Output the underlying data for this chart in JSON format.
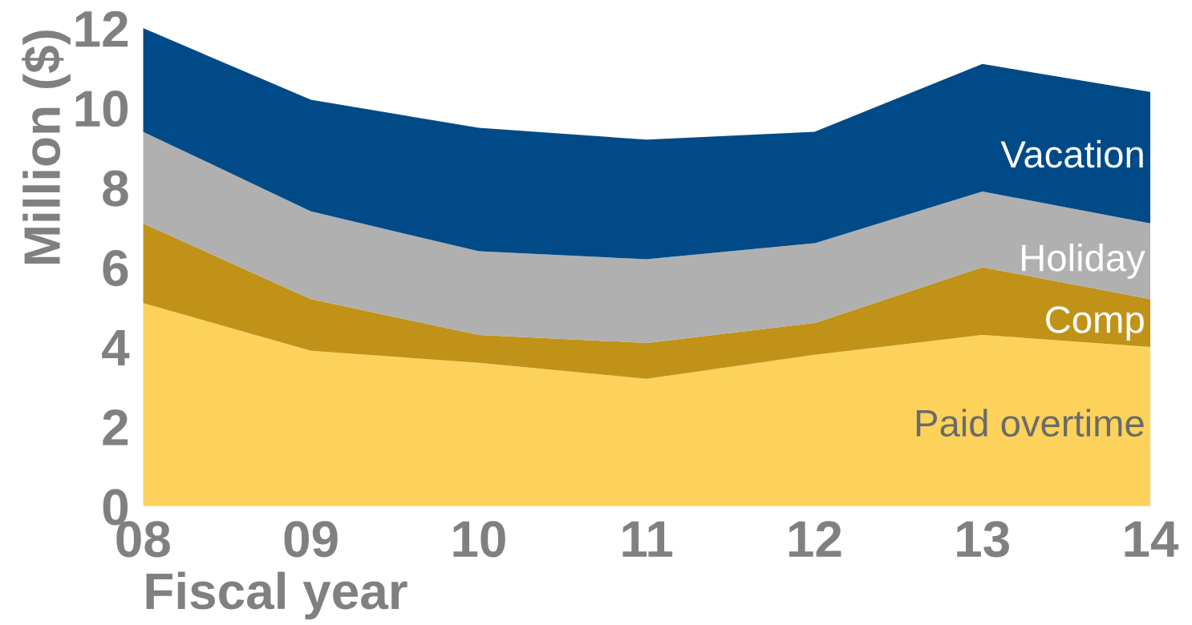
{
  "chart_data": {
    "type": "area",
    "stacked": true,
    "xlabel": "Fiscal year",
    "ylabel": "Million ($)",
    "categories": [
      "08",
      "09",
      "10",
      "11",
      "12",
      "13",
      "14"
    ],
    "series": [
      {
        "name": "Paid overtime",
        "color": "#fcd25a",
        "values": [
          5.1,
          3.9,
          3.6,
          3.2,
          3.8,
          4.3,
          4.0
        ]
      },
      {
        "name": "Comp",
        "color": "#c09218",
        "values": [
          2.0,
          1.3,
          0.7,
          0.9,
          0.8,
          1.7,
          1.2
        ]
      },
      {
        "name": "Holiday",
        "color": "#b0b0b0",
        "values": [
          2.3,
          2.2,
          2.1,
          2.1,
          2.0,
          1.9,
          1.9
        ]
      },
      {
        "name": "Vacation",
        "color": "#004b87",
        "values": [
          2.6,
          2.8,
          3.1,
          3.0,
          2.8,
          3.2,
          3.3
        ]
      }
    ],
    "ylim": [
      0,
      12
    ],
    "yticks": [
      0,
      2,
      4,
      6,
      8,
      10,
      12
    ],
    "grid": false,
    "legend": false
  }
}
